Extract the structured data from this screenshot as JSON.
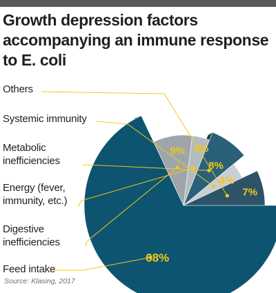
{
  "title_lines": [
    "Growth depression factors",
    "accompanying an immune response",
    "to E. coli"
  ],
  "source": "Source: Klasing, 2017",
  "colors": {
    "top_bar": "#58595b",
    "label_text": "#1f1f1f",
    "value_text": "#f2c81a",
    "leader_line": "#f2c81a"
  },
  "chart_data": {
    "type": "pie",
    "title": "Growth depression factors accompanying an immune response to E. coli",
    "slices": [
      {
        "label_lines": [
          "Feed intake"
        ],
        "value": 68,
        "display": "68%",
        "color": "#0d5470"
      },
      {
        "label_lines": [
          "Digestive",
          "inefficiencies"
        ],
        "value": 9,
        "display": "9%",
        "color": "#9ea5ab"
      },
      {
        "label_lines": [
          "Energy (fever,",
          "immunity, etc.)"
        ],
        "value": 4,
        "display": "4%",
        "color": "#b4bcc2"
      },
      {
        "label_lines": [
          "Metabolic",
          "inefficiencies"
        ],
        "value": 8,
        "display": "8%",
        "color": "#2a6078"
      },
      {
        "label_lines": [
          "Systemic immunity"
        ],
        "value": 4,
        "display": "4%",
        "color": "#c9ced2"
      },
      {
        "label_lines": [
          "Others"
        ],
        "value": 7,
        "display": "7%",
        "color": "#2d5368"
      }
    ]
  }
}
